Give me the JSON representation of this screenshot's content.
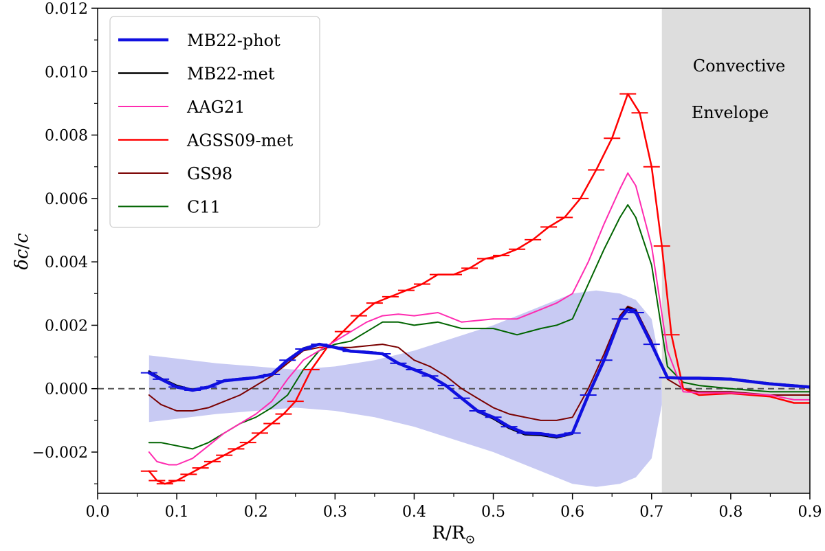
{
  "chart_data": {
    "type": "line",
    "xlabel_main": "R/R",
    "xlabel_sub": "⊙",
    "ylabel_main": "δc",
    "ylabel_sep": "/",
    "ylabel_den": "c",
    "xlim": [
      0.0,
      0.9
    ],
    "ylim": [
      -0.0033,
      0.012
    ],
    "x_ticks": [
      0.0,
      0.1,
      0.2,
      0.3,
      0.4,
      0.5,
      0.6,
      0.7,
      0.8,
      0.9
    ],
    "x_tick_labels": [
      "0.0",
      "0.1",
      "0.2",
      "0.3",
      "0.4",
      "0.5",
      "0.6",
      "0.7",
      "0.8",
      "0.9"
    ],
    "y_ticks": [
      -0.002,
      0.0,
      0.002,
      0.004,
      0.006,
      0.008,
      0.01,
      0.012
    ],
    "y_tick_labels": [
      "−0.002",
      "0.000",
      "0.002",
      "0.004",
      "0.006",
      "0.008",
      "0.010",
      "0.012"
    ],
    "convective_zone": {
      "x_start": 0.713,
      "x_end": 0.9,
      "label_line1": "Convective",
      "label_line2": "Envelope",
      "color": "#dddddd"
    },
    "zero_line": {
      "y": 0.0,
      "color": "#555555"
    },
    "uncertainty_band": {
      "color": "#c8caf3",
      "x": [
        0.065,
        0.1,
        0.15,
        0.2,
        0.25,
        0.3,
        0.35,
        0.4,
        0.45,
        0.5,
        0.55,
        0.6,
        0.63,
        0.66,
        0.68,
        0.7,
        0.713
      ],
      "upper": [
        0.00105,
        0.00095,
        0.0008,
        0.0007,
        0.0006,
        0.0007,
        0.0009,
        0.0012,
        0.0016,
        0.002,
        0.0025,
        0.003,
        0.0031,
        0.003,
        0.0028,
        0.0022,
        0.0005
      ],
      "lower": [
        -0.00105,
        -0.00095,
        -0.0008,
        -0.0007,
        -0.0006,
        -0.0007,
        -0.0009,
        -0.0012,
        -0.0016,
        -0.002,
        -0.0025,
        -0.003,
        -0.0031,
        -0.003,
        -0.0028,
        -0.0022,
        -0.0005
      ]
    },
    "series": [
      {
        "name": "MB22-phot",
        "color": "#1010e0",
        "width": 4.5,
        "errorbars": true,
        "errorbar_color": "#1010e0",
        "x": [
          0.065,
          0.08,
          0.1,
          0.12,
          0.14,
          0.16,
          0.18,
          0.2,
          0.22,
          0.24,
          0.26,
          0.28,
          0.3,
          0.32,
          0.34,
          0.36,
          0.38,
          0.4,
          0.42,
          0.44,
          0.46,
          0.48,
          0.5,
          0.52,
          0.54,
          0.56,
          0.58,
          0.6,
          0.62,
          0.64,
          0.66,
          0.67,
          0.68,
          0.7,
          0.72,
          0.74,
          0.76,
          0.8,
          0.85,
          0.9
        ],
        "y": [
          0.0005,
          0.0003,
          5e-05,
          -5e-05,
          5e-05,
          0.00025,
          0.0003,
          0.00035,
          0.00045,
          0.0009,
          0.00125,
          0.0014,
          0.0013,
          0.00118,
          0.00115,
          0.0011,
          0.0008,
          0.0006,
          0.0004,
          0.0001,
          -0.0003,
          -0.0007,
          -0.0009,
          -0.0012,
          -0.0014,
          -0.00142,
          -0.0015,
          -0.0014,
          -0.0002,
          0.0009,
          0.0022,
          0.0025,
          0.0024,
          0.0014,
          0.00035,
          0.00033,
          0.00033,
          0.0003,
          0.00015,
          5e-05
        ]
      },
      {
        "name": "MB22-met",
        "color": "#000000",
        "width": 2.5,
        "errorbars": false,
        "x": [
          0.065,
          0.08,
          0.1,
          0.12,
          0.14,
          0.16,
          0.18,
          0.2,
          0.22,
          0.24,
          0.26,
          0.28,
          0.3,
          0.32,
          0.34,
          0.36,
          0.38,
          0.4,
          0.42,
          0.44,
          0.46,
          0.48,
          0.5,
          0.52,
          0.54,
          0.56,
          0.58,
          0.6,
          0.62,
          0.64,
          0.66,
          0.67,
          0.68,
          0.7,
          0.72,
          0.74,
          0.76,
          0.8,
          0.85,
          0.9
        ],
        "y": [
          0.00055,
          0.00033,
          0.0001,
          -3e-05,
          7e-05,
          0.00027,
          0.00032,
          0.00037,
          0.00047,
          0.00092,
          0.00128,
          0.00142,
          0.00132,
          0.0012,
          0.00117,
          0.00112,
          0.00082,
          0.00062,
          0.00042,
          0.00012,
          -0.00032,
          -0.00073,
          -0.00095,
          -0.00125,
          -0.00145,
          -0.00147,
          -0.00155,
          -0.00143,
          -0.00025,
          0.00088,
          0.00222,
          0.00256,
          0.00245,
          0.00145,
          0.00037,
          0.00035,
          0.00035,
          0.00032,
          0.00017,
          7e-05
        ]
      },
      {
        "name": "AAG21",
        "color": "#ff2bb0",
        "width": 2,
        "errorbars": false,
        "x": [
          0.065,
          0.075,
          0.09,
          0.1,
          0.12,
          0.14,
          0.16,
          0.18,
          0.2,
          0.22,
          0.24,
          0.26,
          0.28,
          0.3,
          0.32,
          0.34,
          0.36,
          0.38,
          0.4,
          0.43,
          0.46,
          0.5,
          0.53,
          0.56,
          0.58,
          0.6,
          0.62,
          0.64,
          0.66,
          0.67,
          0.68,
          0.7,
          0.72,
          0.74,
          0.76,
          0.8,
          0.85,
          0.88,
          0.9
        ],
        "y": [
          -0.002,
          -0.0023,
          -0.0024,
          -0.0024,
          -0.0022,
          -0.0018,
          -0.0014,
          -0.0011,
          -0.0008,
          -0.0004,
          0.0003,
          0.0009,
          0.0012,
          0.0015,
          0.0018,
          0.0021,
          0.0023,
          0.00235,
          0.0023,
          0.0024,
          0.0021,
          0.0022,
          0.0022,
          0.0025,
          0.0027,
          0.003,
          0.004,
          0.0052,
          0.0063,
          0.0068,
          0.0064,
          0.0045,
          0.0012,
          -0.0001,
          -0.00013,
          -0.00013,
          -0.0002,
          -0.00035,
          -0.00035
        ]
      },
      {
        "name": "AGSS09-met",
        "color": "#ff0000",
        "width": 2.5,
        "errorbars": true,
        "errorbar_color": "#ff0000",
        "x": [
          0.065,
          0.075,
          0.085,
          0.1,
          0.115,
          0.13,
          0.145,
          0.16,
          0.175,
          0.19,
          0.205,
          0.22,
          0.235,
          0.25,
          0.27,
          0.29,
          0.31,
          0.33,
          0.35,
          0.37,
          0.39,
          0.41,
          0.43,
          0.45,
          0.47,
          0.49,
          0.51,
          0.53,
          0.55,
          0.57,
          0.59,
          0.61,
          0.63,
          0.65,
          0.67,
          0.685,
          0.7,
          0.713,
          0.725,
          0.74,
          0.76,
          0.8,
          0.85,
          0.88,
          0.9
        ],
        "y": [
          -0.0026,
          -0.0029,
          -0.003,
          -0.0029,
          -0.0027,
          -0.0025,
          -0.0023,
          -0.0021,
          -0.0019,
          -0.0017,
          -0.0014,
          -0.0011,
          -0.0008,
          -0.0004,
          0.0006,
          0.0013,
          0.0018,
          0.0023,
          0.0027,
          0.0029,
          0.0031,
          0.0033,
          0.0036,
          0.0036,
          0.0038,
          0.0041,
          0.0042,
          0.0044,
          0.0047,
          0.0051,
          0.0054,
          0.006,
          0.0069,
          0.0079,
          0.0093,
          0.0087,
          0.007,
          0.0045,
          0.0017,
          0.0,
          -0.0002,
          -0.00015,
          -0.00025,
          -0.00045,
          -0.00045
        ]
      },
      {
        "name": "GS98",
        "color": "#7a0000",
        "width": 2,
        "errorbars": false,
        "x": [
          0.065,
          0.08,
          0.1,
          0.12,
          0.14,
          0.16,
          0.18,
          0.2,
          0.22,
          0.24,
          0.26,
          0.28,
          0.3,
          0.32,
          0.34,
          0.36,
          0.38,
          0.4,
          0.42,
          0.44,
          0.46,
          0.48,
          0.5,
          0.52,
          0.54,
          0.56,
          0.58,
          0.6,
          0.62,
          0.64,
          0.66,
          0.67,
          0.68,
          0.7,
          0.72,
          0.74,
          0.76,
          0.8,
          0.85,
          0.9
        ],
        "y": [
          -0.0002,
          -0.0005,
          -0.0007,
          -0.0007,
          -0.0006,
          -0.0004,
          -0.0002,
          0.0001,
          0.0004,
          0.0008,
          0.0012,
          0.0013,
          0.0013,
          0.0013,
          0.00135,
          0.0014,
          0.0013,
          0.0009,
          0.0007,
          0.0004,
          0.0,
          -0.0003,
          -0.0006,
          -0.0008,
          -0.0009,
          -0.001,
          -0.001,
          -0.0009,
          0.0,
          0.0011,
          0.0023,
          0.0026,
          0.0025,
          0.0015,
          0.0003,
          0.0,
          -0.0001,
          -0.0001,
          -0.0002,
          -0.0002
        ]
      },
      {
        "name": "C11",
        "color": "#006400",
        "width": 2,
        "errorbars": false,
        "x": [
          0.065,
          0.08,
          0.1,
          0.12,
          0.14,
          0.16,
          0.18,
          0.2,
          0.22,
          0.24,
          0.26,
          0.28,
          0.3,
          0.32,
          0.34,
          0.36,
          0.38,
          0.4,
          0.43,
          0.46,
          0.5,
          0.53,
          0.56,
          0.58,
          0.6,
          0.62,
          0.64,
          0.66,
          0.67,
          0.68,
          0.7,
          0.72,
          0.74,
          0.76,
          0.8,
          0.85,
          0.88,
          0.9
        ],
        "y": [
          -0.0017,
          -0.0017,
          -0.0018,
          -0.0019,
          -0.0017,
          -0.0014,
          -0.0011,
          -0.0009,
          -0.0006,
          -0.0002,
          0.0006,
          0.0012,
          0.0014,
          0.0015,
          0.0018,
          0.0021,
          0.0021,
          0.002,
          0.0021,
          0.0019,
          0.0019,
          0.0017,
          0.0019,
          0.002,
          0.0022,
          0.0033,
          0.0044,
          0.0054,
          0.0058,
          0.0054,
          0.0039,
          0.0007,
          0.0002,
          0.0001,
          0.0,
          -0.0001,
          -0.0001,
          -0.0001
        ]
      }
    ]
  }
}
